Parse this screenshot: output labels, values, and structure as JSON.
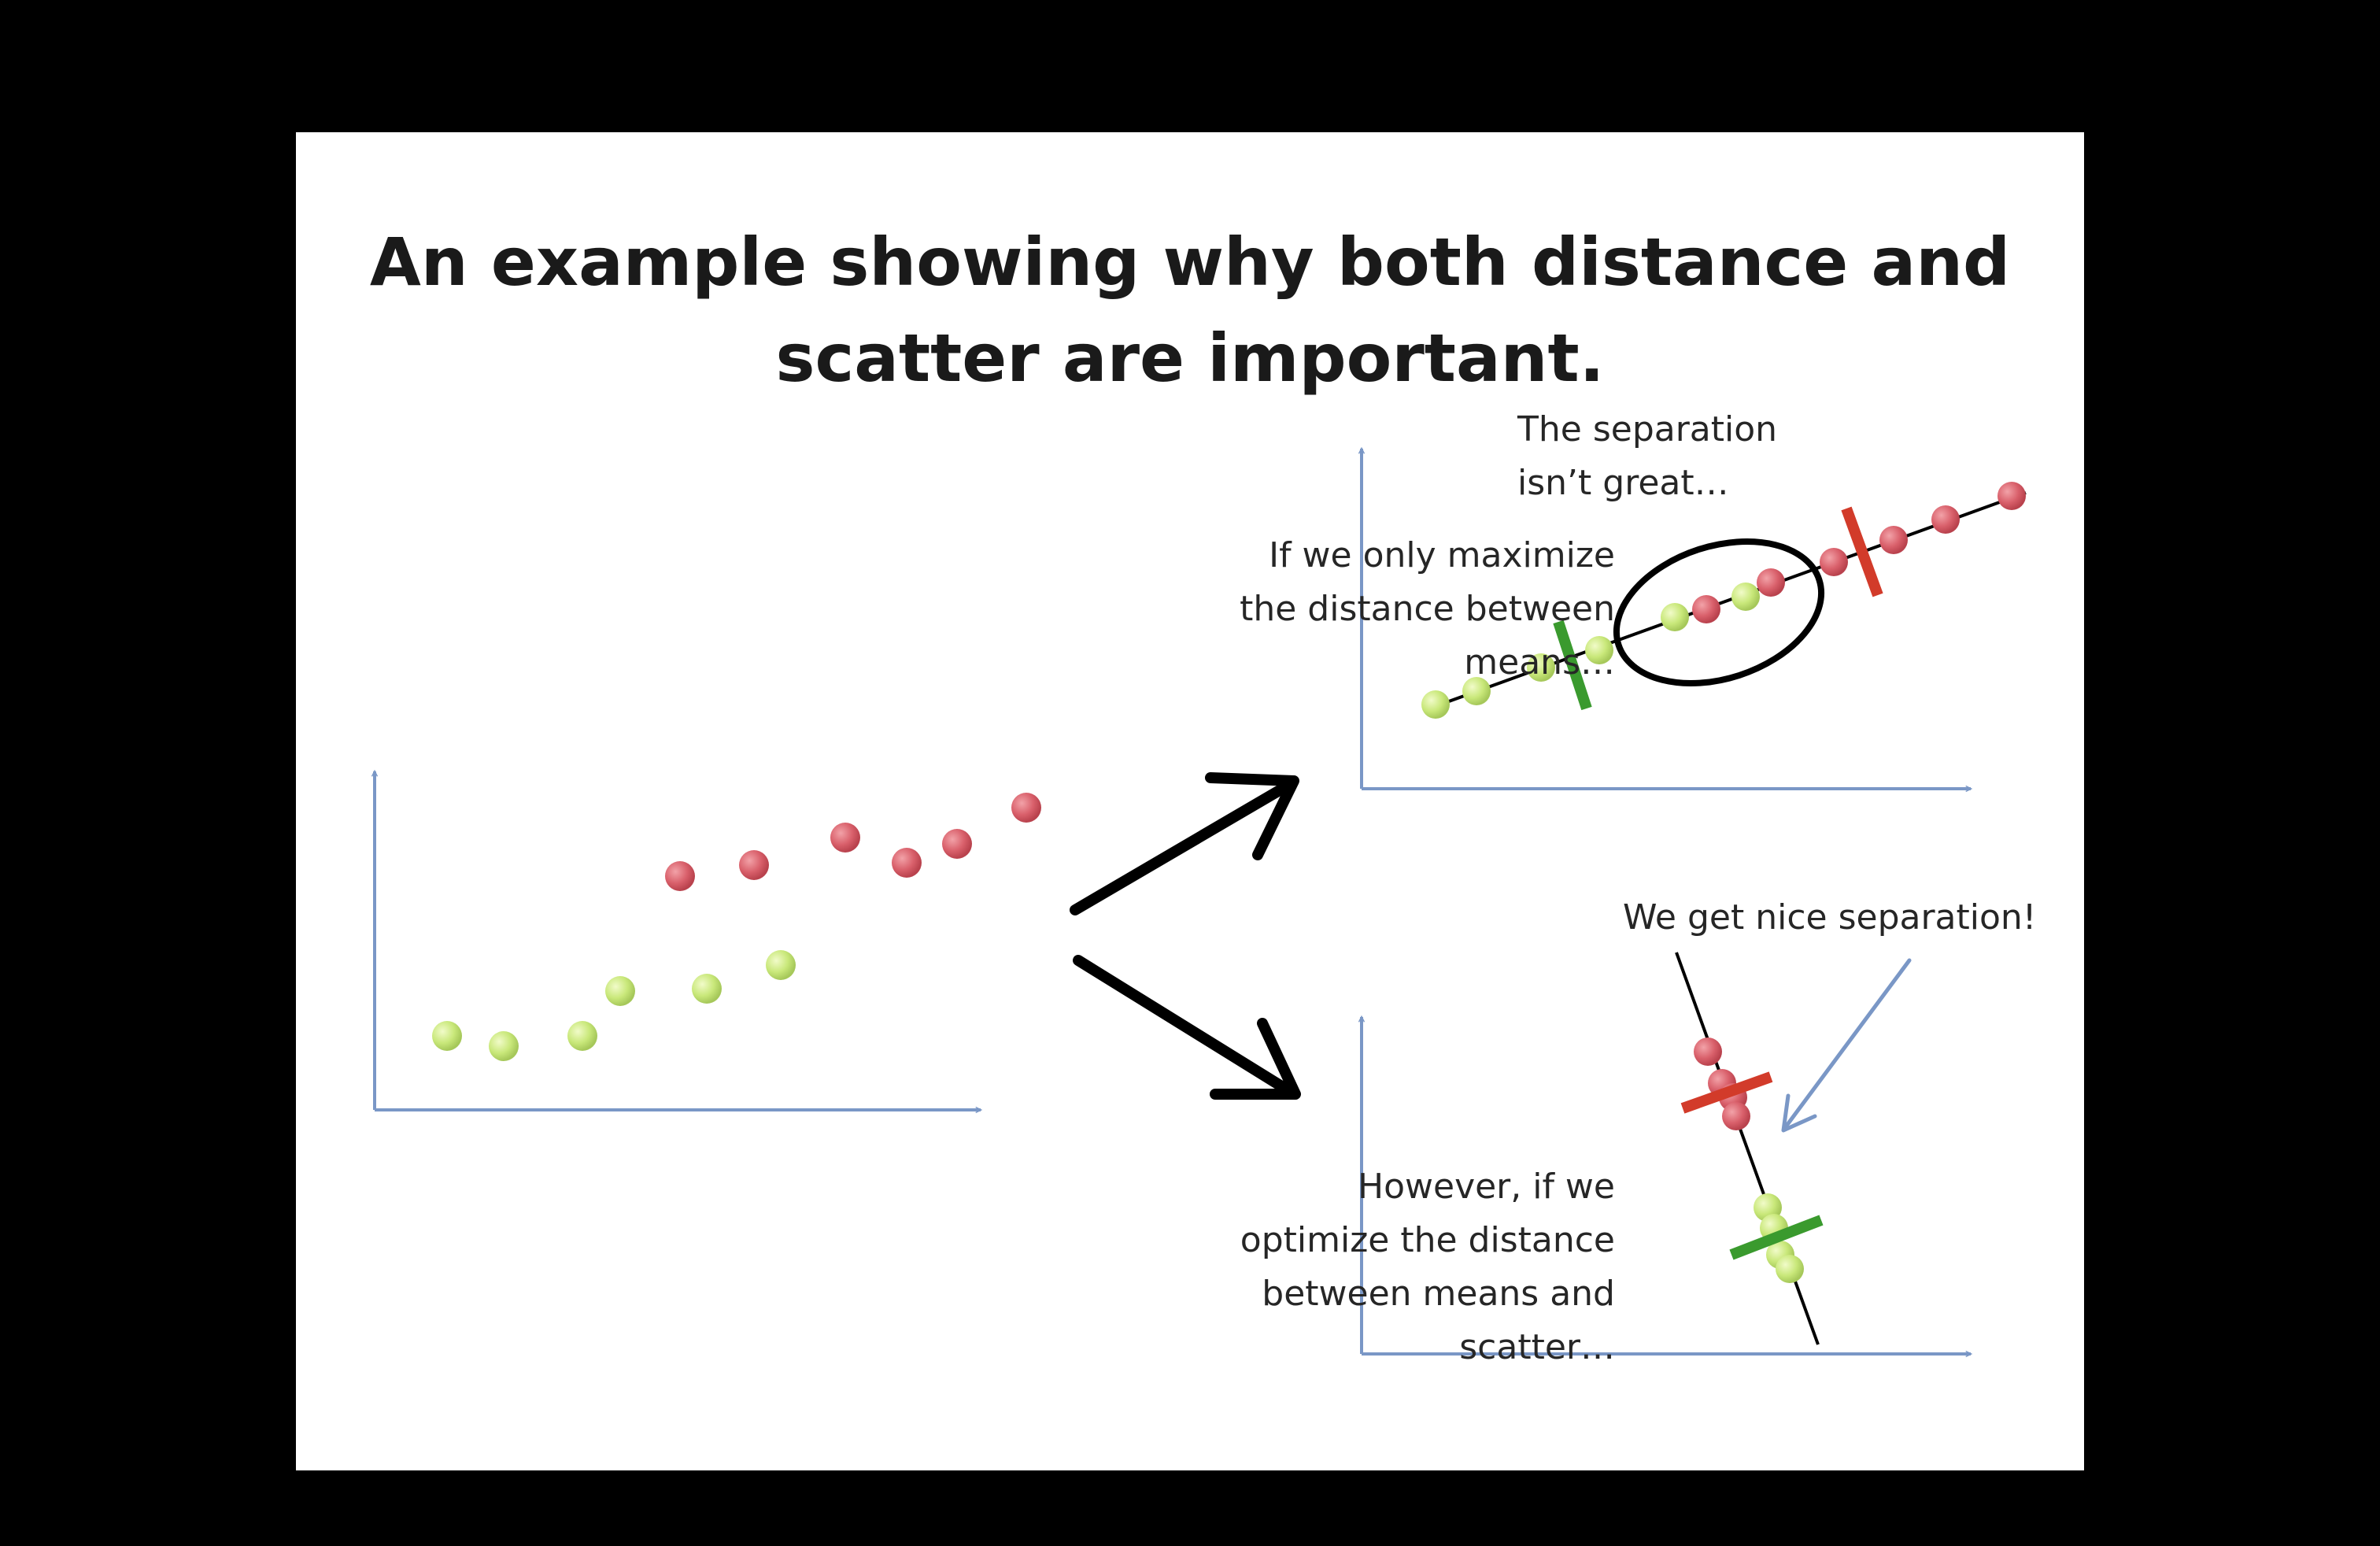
{
  "title_lines": [
    "An example showing why both distance and",
    "scatter are important."
  ],
  "note_top_left": [
    "If we only maximize",
    "the distance between",
    "means…"
  ],
  "note_top_right": [
    "The separation",
    "isn’t great…"
  ],
  "note_bottom_left": [
    "However, if we",
    "optimize the distance",
    "between means and",
    "scatter…"
  ],
  "note_bottom_right": [
    "We get nice separation!"
  ],
  "colors": {
    "axis": "#7a97c6",
    "green_point": "#c9e87a",
    "red_point": "#d9606b",
    "green_threshold": "#3a9a2e",
    "red_threshold": "#d23b2a",
    "projection_line": "#000000"
  }
}
